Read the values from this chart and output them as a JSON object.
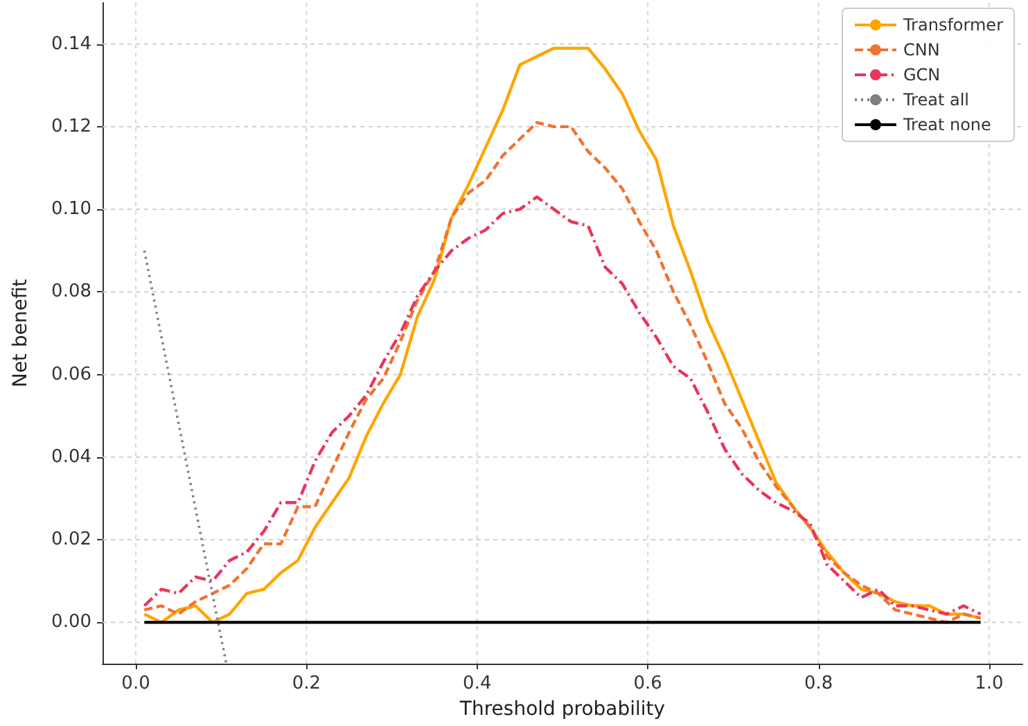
{
  "chart_data": {
    "type": "line",
    "xlabel": "Threshold probability",
    "ylabel": "Net benefit",
    "x": [
      0.01,
      0.03,
      0.05,
      0.07,
      0.09,
      0.11,
      0.13,
      0.15,
      0.17,
      0.19,
      0.21,
      0.23,
      0.25,
      0.27,
      0.29,
      0.31,
      0.33,
      0.35,
      0.37,
      0.39,
      0.41,
      0.43,
      0.45,
      0.47,
      0.49,
      0.51,
      0.53,
      0.55,
      0.57,
      0.59,
      0.61,
      0.63,
      0.65,
      0.67,
      0.69,
      0.71,
      0.73,
      0.75,
      0.77,
      0.79,
      0.81,
      0.83,
      0.85,
      0.87,
      0.89,
      0.91,
      0.93,
      0.95,
      0.97,
      0.99
    ],
    "series": [
      {
        "name": "Transformer",
        "color": "#ffa500",
        "line_style": "solid",
        "values": [
          0.002,
          0.0,
          0.003,
          0.004,
          0.0,
          0.002,
          0.007,
          0.008,
          0.012,
          0.015,
          0.023,
          0.029,
          0.035,
          0.045,
          0.053,
          0.06,
          0.074,
          0.083,
          0.098,
          0.106,
          0.115,
          0.124,
          0.135,
          0.137,
          0.139,
          0.139,
          0.139,
          0.134,
          0.128,
          0.119,
          0.112,
          0.096,
          0.085,
          0.073,
          0.064,
          0.054,
          0.044,
          0.034,
          0.028,
          0.023,
          0.017,
          0.012,
          0.008,
          0.007,
          0.005,
          0.004,
          0.004,
          0.002,
          0.002,
          0.001
        ]
      },
      {
        "name": "CNN",
        "color": "#f07332",
        "line_style": "dashed",
        "values": [
          0.003,
          0.004,
          0.002,
          0.005,
          0.007,
          0.009,
          0.013,
          0.019,
          0.019,
          0.028,
          0.028,
          0.037,
          0.046,
          0.054,
          0.059,
          0.068,
          0.078,
          0.085,
          0.098,
          0.104,
          0.107,
          0.113,
          0.117,
          0.121,
          0.12,
          0.12,
          0.114,
          0.11,
          0.105,
          0.097,
          0.09,
          0.08,
          0.072,
          0.063,
          0.053,
          0.047,
          0.039,
          0.033,
          0.028,
          0.023,
          0.016,
          0.012,
          0.009,
          0.007,
          0.003,
          0.002,
          0.001,
          0.0,
          0.002,
          0.001
        ]
      },
      {
        "name": "GCN",
        "color": "#e8365a",
        "line_style": "dashdot",
        "values": [
          0.004,
          0.008,
          0.007,
          0.011,
          0.01,
          0.015,
          0.017,
          0.022,
          0.029,
          0.029,
          0.039,
          0.046,
          0.05,
          0.055,
          0.063,
          0.07,
          0.079,
          0.085,
          0.09,
          0.093,
          0.095,
          0.099,
          0.1,
          0.103,
          0.1,
          0.097,
          0.096,
          0.086,
          0.082,
          0.075,
          0.069,
          0.062,
          0.059,
          0.051,
          0.042,
          0.036,
          0.032,
          0.029,
          0.027,
          0.024,
          0.014,
          0.01,
          0.006,
          0.008,
          0.004,
          0.004,
          0.003,
          0.002,
          0.004,
          0.002
        ]
      },
      {
        "name": "Treat all",
        "color": "#808080",
        "line_style": "dotted",
        "x": [
          0.01,
          0.106
        ],
        "values": [
          0.09,
          -0.01
        ]
      },
      {
        "name": "Treat none",
        "color": "#000000",
        "line_style": "solid",
        "x": [
          0.01,
          0.99
        ],
        "values": [
          0,
          0
        ]
      }
    ],
    "xlim": [
      -0.039,
      1.039
    ],
    "xticks": [
      {
        "value": 0,
        "label": "0.0"
      },
      0.2,
      0.4,
      0.6,
      0.8,
      {
        "value": 1,
        "label": "1.0"
      }
    ],
    "ylim": [
      -0.01,
      0.15
    ],
    "yticks": [
      {
        "value": 0,
        "label": "0.00"
      },
      {
        "value": 0.02,
        "label": "0.02"
      },
      {
        "value": 0.04,
        "label": "0.04"
      },
      {
        "value": 0.06,
        "label": "0.06"
      },
      {
        "value": 0.08,
        "label": "0.08"
      },
      {
        "value": 0.1,
        "label": "0.10"
      },
      {
        "value": 0.12,
        "label": "0.12"
      },
      {
        "value": 0.14,
        "label": "0.14"
      }
    ],
    "grid": true,
    "legend": "top right",
    "marker": "none"
  }
}
